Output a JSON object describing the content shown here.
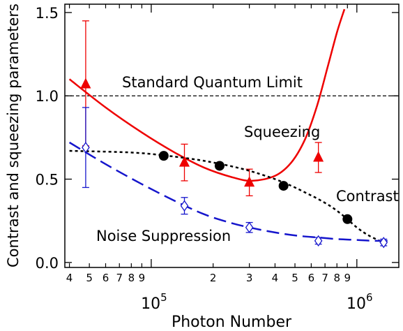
{
  "chart_data": {
    "type": "scatter",
    "xlabel": "Photon Number",
    "ylabel": "Contrast and squeezing parameters",
    "x_scale": "log",
    "xlim": [
      38000,
      1600000
    ],
    "ylim": [
      -0.03,
      1.55
    ],
    "grid": false,
    "y_ticks": [
      {
        "value": 0.0,
        "label": "0.0"
      },
      {
        "value": 0.5,
        "label": "0.5"
      },
      {
        "value": 1.0,
        "label": "1.0"
      },
      {
        "value": 1.5,
        "label": "1.5"
      }
    ],
    "x_minor_ticks": [
      {
        "value": 40000,
        "label": "4"
      },
      {
        "value": 50000,
        "label": "5"
      },
      {
        "value": 60000,
        "label": "6"
      },
      {
        "value": 70000,
        "label": "7"
      },
      {
        "value": 80000,
        "label": "8"
      },
      {
        "value": 90000,
        "label": "9"
      },
      {
        "value": 200000,
        "label": "2"
      },
      {
        "value": 300000,
        "label": "3"
      },
      {
        "value": 400000,
        "label": "4"
      },
      {
        "value": 500000,
        "label": "5"
      },
      {
        "value": 600000,
        "label": "6"
      },
      {
        "value": 700000,
        "label": "7"
      },
      {
        "value": 800000,
        "label": "8"
      },
      {
        "value": 900000,
        "label": "9"
      }
    ],
    "x_major_ticks": [
      {
        "value": 100000,
        "base": "10",
        "exp": "5"
      },
      {
        "value": 1000000,
        "base": "10",
        "exp": "6"
      }
    ],
    "reference_line": {
      "y": 1.0,
      "label": "Standard Quantum Limit"
    },
    "series": [
      {
        "name": "Squeezing",
        "color": "#ee0000",
        "marker": "triangle-filled",
        "points": [
          {
            "x": 48000,
            "y": 1.07,
            "err_lo": 0.37,
            "err_hi": 0.38
          },
          {
            "x": 145000,
            "y": 0.6,
            "err_lo": 0.11,
            "err_hi": 0.11
          },
          {
            "x": 300000,
            "y": 0.48,
            "err_lo": 0.08,
            "err_hi": 0.08
          },
          {
            "x": 650000,
            "y": 0.63,
            "err_lo": 0.09,
            "err_hi": 0.09
          }
        ],
        "fit": {
          "style": "solid",
          "x": [
            40000,
            60000,
            90000,
            130000,
            180000,
            250000,
            310000,
            400000,
            480000,
            560000,
            640000,
            720000,
            800000,
            870000
          ],
          "y": [
            1.1,
            0.93,
            0.78,
            0.66,
            0.57,
            0.51,
            0.49,
            0.52,
            0.6,
            0.74,
            0.94,
            1.17,
            1.38,
            1.52
          ]
        }
      },
      {
        "name": "Contrast",
        "color": "#000000",
        "marker": "circle-filled",
        "points": [
          {
            "x": 115000,
            "y": 0.64
          },
          {
            "x": 215000,
            "y": 0.58
          },
          {
            "x": 440000,
            "y": 0.46
          },
          {
            "x": 900000,
            "y": 0.26
          }
        ],
        "fit": {
          "style": "dotted",
          "x": [
            40000,
            80000,
            120000,
            160000,
            200000,
            260000,
            320000,
            400000,
            480000,
            560000,
            650000,
            760000,
            880000,
            1000000,
            1150000,
            1400000
          ],
          "y": [
            0.67,
            0.66,
            0.64,
            0.62,
            0.6,
            0.57,
            0.54,
            0.5,
            0.46,
            0.42,
            0.38,
            0.33,
            0.27,
            0.21,
            0.16,
            0.11
          ]
        }
      },
      {
        "name": "Noise Suppression",
        "color": "#1515cc",
        "marker": "diamond-open",
        "points": [
          {
            "x": 48000,
            "y": 0.69,
            "err_lo": 0.24,
            "err_hi": 0.24
          },
          {
            "x": 145000,
            "y": 0.34,
            "err_lo": 0.05,
            "err_hi": 0.05
          },
          {
            "x": 300000,
            "y": 0.21,
            "err_lo": 0.03,
            "err_hi": 0.03
          },
          {
            "x": 650000,
            "y": 0.13,
            "err_lo": 0.02,
            "err_hi": 0.02
          },
          {
            "x": 1350000,
            "y": 0.12,
            "err_lo": 0.02,
            "err_hi": 0.02
          }
        ],
        "fit": {
          "style": "dashed",
          "x": [
            40000,
            60000,
            90000,
            130000,
            180000,
            240000,
            300000,
            400000,
            520000,
            650000,
            800000,
            1000000,
            1200000,
            1500000
          ],
          "y": [
            0.72,
            0.59,
            0.47,
            0.37,
            0.29,
            0.24,
            0.21,
            0.18,
            0.16,
            0.15,
            0.14,
            0.135,
            0.13,
            0.13
          ]
        }
      }
    ]
  }
}
